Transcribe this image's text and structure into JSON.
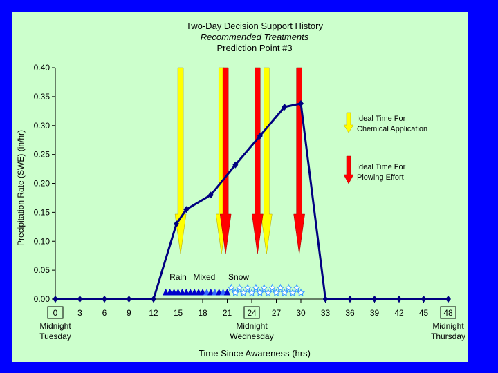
{
  "chart_data": {
    "type": "line",
    "title": "Two-Day Decision Support History",
    "subtitle": "Recommended Treatments",
    "subtitle2": "Prediction Point #3",
    "xlabel": "Time Since Awareness (hrs)",
    "ylabel": "Precipitation Rate (SWE) (in/hr)",
    "ylim": [
      0,
      0.4
    ],
    "yticks": [
      "0.00",
      "0.05",
      "0.10",
      "0.15",
      "0.20",
      "0.25",
      "0.30",
      "0.35",
      "0.40"
    ],
    "xlim": [
      0,
      48
    ],
    "xticks": [
      "0",
      "3",
      "6",
      "9",
      "12",
      "15",
      "18",
      "21",
      "24",
      "27",
      "30",
      "33",
      "36",
      "39",
      "42",
      "45",
      "48"
    ],
    "boxed_xticks": [
      "0",
      "24",
      "48"
    ],
    "day_labels": [
      {
        "x": 0,
        "line1": "Midnight",
        "line2": "Tuesday"
      },
      {
        "x": 24,
        "line1": "Midnight",
        "line2": "Wednesday"
      },
      {
        "x": 48,
        "line1": "Midnight",
        "line2": "Thursday"
      }
    ],
    "grid": false,
    "series": [
      {
        "color": "#000080",
        "points": [
          [
            0,
            0
          ],
          [
            3,
            0
          ],
          [
            6,
            0
          ],
          [
            9,
            0
          ],
          [
            12,
            0
          ],
          [
            14.8,
            0.13
          ],
          [
            16,
            0.155
          ],
          [
            19,
            0.18
          ],
          [
            22,
            0.232
          ],
          [
            25,
            0.282
          ],
          [
            28,
            0.332
          ],
          [
            30,
            0.338
          ],
          [
            33,
            0
          ],
          [
            36,
            0
          ],
          [
            39,
            0
          ],
          [
            42,
            0
          ],
          [
            45,
            0
          ],
          [
            48,
            0
          ]
        ]
      }
    ],
    "precip_type_labels": [
      {
        "x": 15,
        "text": "Rain"
      },
      {
        "x": 18.2,
        "text": "Mixed"
      },
      {
        "x": 22.4,
        "text": "Snow"
      }
    ],
    "rain_markers": [
      13.5,
      14.0,
      14.5,
      15.0,
      15.5,
      16.0,
      16.5,
      17.0,
      17.5
    ],
    "mixed_markers": [
      18.0,
      18.5,
      19.0,
      19.5,
      20.0,
      20.5,
      21.0
    ],
    "snow_markers": [
      21.5,
      22.0,
      22.5,
      23.0,
      23.5,
      24.0,
      24.5,
      25.0,
      25.5,
      26.0,
      26.5,
      27.0,
      27.5,
      28.0,
      28.5,
      29.0,
      29.5,
      30.0
    ],
    "chemical_arrows": [
      15.3,
      20.3,
      25.8
    ],
    "plowing_arrows": [
      20.8,
      24.7,
      29.8
    ],
    "legend": {
      "chemical": {
        "line1": "Ideal Time For",
        "line2": "Chemical Application",
        "color": "#ffff00"
      },
      "plowing": {
        "line1": "Ideal Time For",
        "line2": "Plowing Effort",
        "color": "#ff0000"
      }
    },
    "colors": {
      "background": "#0000ff",
      "panel": "#ccffcc",
      "line": "#000080",
      "rain": "#0000cc",
      "snow": "#3399ff",
      "chemical": "#ffff00",
      "plowing": "#ff0000"
    }
  }
}
